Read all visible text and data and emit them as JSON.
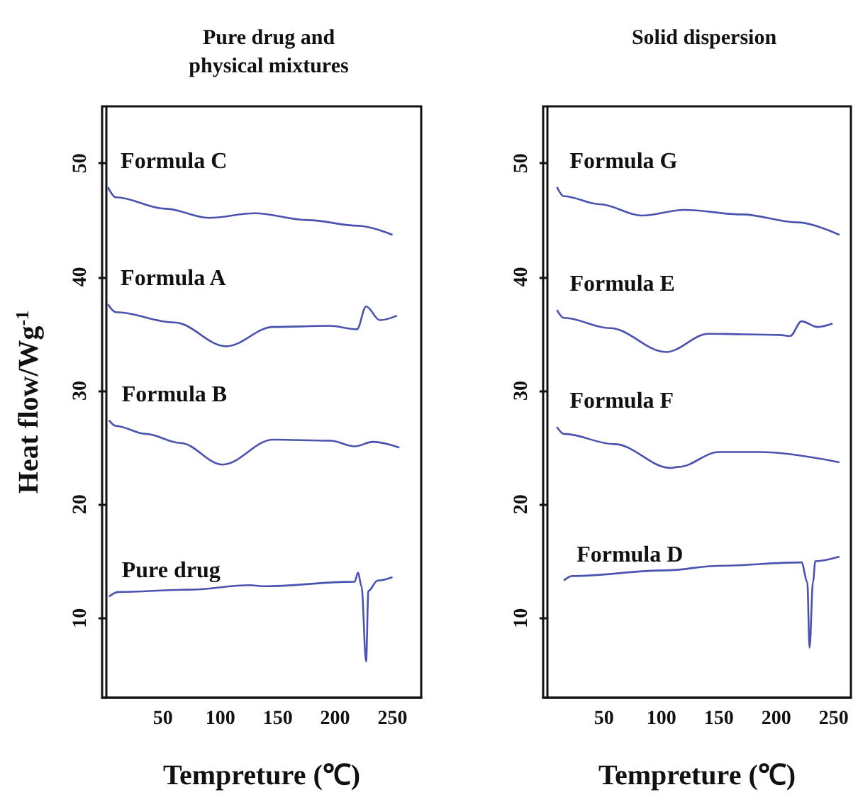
{
  "chart_data": [
    {
      "type": "line",
      "title": "Pure drug and\nphysical mixtures",
      "xlabel": "Tempreture (℃)",
      "ylabel": "Heat flow/Wg$^{-1}$",
      "xlim": [
        -3,
        275
      ],
      "xticks": [
        50,
        100,
        150,
        200,
        250
      ],
      "ylim": [
        3,
        55
      ],
      "yticks": [
        10,
        20,
        30,
        40,
        50
      ],
      "grid": false,
      "legend": false,
      "marker": "none",
      "series": [
        {
          "name": "Formula C",
          "color": "#4a52b0",
          "x": [
            2,
            9,
            52,
            90,
            130,
            176,
            220,
            250
          ],
          "values": [
            47.9,
            47.0,
            46.0,
            45.2,
            45.6,
            45.0,
            44.5,
            43.7
          ]
        },
        {
          "name": "Formula A",
          "color": "#4a52b0",
          "x": [
            2,
            9,
            60,
            105,
            146,
            195,
            219,
            227,
            239,
            254
          ],
          "values": [
            37.6,
            36.9,
            36.0,
            33.9,
            35.6,
            35.7,
            35.4,
            37.4,
            36.2,
            36.6
          ]
        },
        {
          "name": "Formula B",
          "color": "#4a52b0",
          "x": [
            3,
            9,
            35,
            65,
            102,
            146,
            196,
            217,
            233,
            256
          ],
          "values": [
            27.4,
            26.9,
            26.2,
            25.4,
            23.5,
            25.7,
            25.6,
            25.1,
            25.5,
            25.0
          ]
        },
        {
          "name": "Pure drug",
          "color": "#4a52b0",
          "x": [
            3,
            11,
            72,
            126,
            137,
            217,
            220,
            223,
            227,
            229,
            237,
            250
          ],
          "values": [
            11.9,
            12.3,
            12.5,
            12.9,
            12.8,
            13.2,
            14.0,
            12.8,
            6.2,
            12.4,
            13.3,
            13.6
          ]
        }
      ]
    },
    {
      "type": "line",
      "title": "Solid dispersion",
      "xlabel": "Tempreture (℃)",
      "xlim": [
        -3,
        265
      ],
      "xticks": [
        50,
        100,
        150,
        200,
        250
      ],
      "ylim": [
        3,
        55
      ],
      "yticks": [
        10,
        20,
        30,
        40,
        50
      ],
      "grid": false,
      "legend": false,
      "marker": "none",
      "series": [
        {
          "name": "Formula G",
          "color": "#4a52b0",
          "x": [
            9,
            15,
            46,
            83,
            120,
            170,
            219,
            255
          ],
          "values": [
            47.9,
            47.1,
            46.4,
            45.4,
            45.9,
            45.5,
            44.8,
            43.7
          ]
        },
        {
          "name": "Formula E",
          "color": "#4a52b0",
          "x": [
            9,
            15,
            55,
            104,
            141,
            203,
            212,
            222,
            236,
            249
          ],
          "values": [
            37.1,
            36.4,
            35.5,
            33.4,
            35.0,
            34.9,
            34.8,
            36.1,
            35.6,
            35.9
          ]
        },
        {
          "name": "Formula F",
          "color": "#4a52b0",
          "x": [
            9,
            15,
            59,
            108,
            115,
            150,
            187,
            255
          ],
          "values": [
            26.8,
            26.2,
            25.3,
            23.2,
            23.3,
            24.6,
            24.6,
            23.7
          ]
        },
        {
          "name": "Formula D",
          "color": "#4a52b0",
          "x": [
            15,
            22,
            104,
            150,
            222,
            227,
            229,
            232,
            234,
            255
          ],
          "values": [
            13.3,
            13.7,
            14.2,
            14.6,
            14.9,
            13.2,
            7.4,
            13.2,
            15.0,
            15.4
          ]
        }
      ]
    }
  ]
}
